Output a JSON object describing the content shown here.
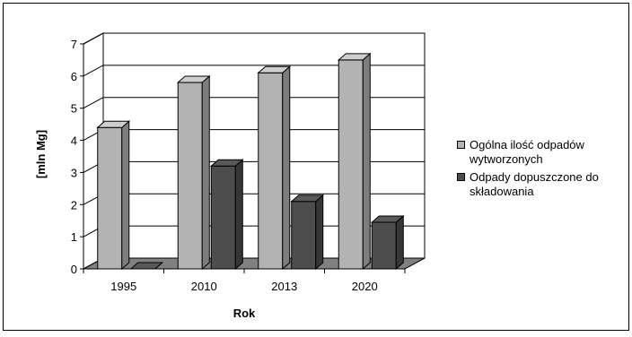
{
  "chart_data": {
    "type": "bar",
    "title": "",
    "xlabel": "Rok",
    "ylabel": "[mln Mg]",
    "categories": [
      "1995",
      "2010",
      "2013",
      "2020"
    ],
    "ylim": [
      0,
      7
    ],
    "yticks": [
      "0",
      "1",
      "2",
      "3",
      "4",
      "5",
      "6",
      "7"
    ],
    "grid": true,
    "legend_position": "right",
    "style": "3d",
    "series": [
      {
        "name": "Ogólna ilość odpadów wytworzonych",
        "values": [
          4.4,
          5.8,
          6.1,
          6.5
        ],
        "color": "#b3b3b3"
      },
      {
        "name": "Odpady dopuszczone do składowania",
        "values": [
          0,
          3.2,
          2.1,
          1.45
        ],
        "color": "#4d4d4d"
      }
    ]
  },
  "legend": {
    "items": [
      {
        "line1": "Ogólna ilość odpadów",
        "line2": "wytworzonych",
        "color": "#b3b3b3"
      },
      {
        "line1": "Odpady dopuszczone do",
        "line2": "składowania",
        "color": "#4d4d4d"
      }
    ]
  }
}
